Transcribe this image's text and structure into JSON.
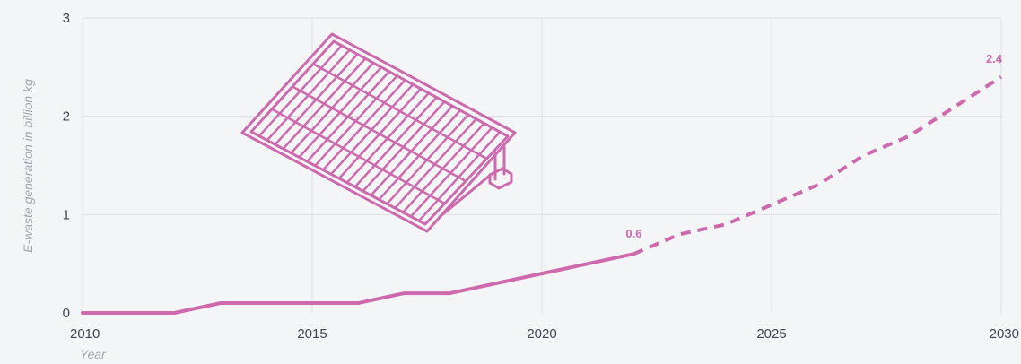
{
  "chart_data": {
    "type": "line",
    "xlabel": "Year",
    "ylabel": "E-waste generation in billion kg",
    "xlim": [
      2010,
      2030
    ],
    "ylim": [
      0,
      3
    ],
    "x_ticks": [
      "2010",
      "2015",
      "2020",
      "2025",
      "2030"
    ],
    "y_ticks": [
      "0",
      "1",
      "2",
      "3"
    ],
    "grid": true,
    "series": [
      {
        "style": "solid",
        "x": [
          2010,
          2011,
          2012,
          2013,
          2014,
          2015,
          2016,
          2017,
          2018,
          2019,
          2020,
          2021,
          2022
        ],
        "y": [
          0,
          0,
          0,
          0.1,
          0.1,
          0.1,
          0.1,
          0.2,
          0.2,
          0.3,
          0.4,
          0.5,
          0.6
        ]
      },
      {
        "style": "dashed",
        "x": [
          2022,
          2023,
          2024,
          2025,
          2026,
          2027,
          2028,
          2029,
          2030
        ],
        "y": [
          0.6,
          0.8,
          0.9,
          1.1,
          1.3,
          1.6,
          1.8,
          2.1,
          2.4
        ]
      }
    ],
    "data_labels": [
      {
        "text": "0.6",
        "x": 2022,
        "y": 0.6
      },
      {
        "text": "2.4",
        "x": 2030,
        "y": 2.4
      }
    ],
    "illustration": "solar-panel-icon",
    "colors": {
      "line": "#cc6aad",
      "grid": "#dcdfe3",
      "background": "#f4f5f7",
      "tick_text": "#3f4650",
      "axis_title": "#a2a7ae"
    }
  }
}
